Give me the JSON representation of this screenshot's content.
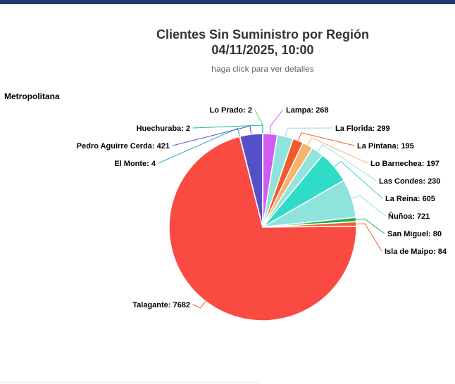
{
  "chart_data": {
    "type": "pie",
    "title_line1": "Clientes Sin Suministro por Región",
    "title_line2": "04/11/2025, 10:00",
    "subtitle": "haga click para ver detalles",
    "series_name": "Metropolitana",
    "slices": [
      {
        "name": "Lo Prado",
        "value": 2,
        "color": "#5bd46b"
      },
      {
        "name": "Lampa",
        "value": 268,
        "color": "#d05cf0"
      },
      {
        "name": "La Florida",
        "value": 299,
        "color": "#8fe3dd"
      },
      {
        "name": "La Pintana",
        "value": 195,
        "color": "#f25a2c"
      },
      {
        "name": "Lo Barnechea",
        "value": 197,
        "color": "#f8b26a"
      },
      {
        "name": "Las Condes",
        "value": 230,
        "color": "#93e4de"
      },
      {
        "name": "La Reina",
        "value": 605,
        "color": "#2fdcc8"
      },
      {
        "name": "Ñuñoa",
        "value": 721,
        "color": "#8fe3dd"
      },
      {
        "name": "San Miguel",
        "value": 80,
        "color": "#21b04b"
      },
      {
        "name": "Isla de Maipo",
        "value": 84,
        "color": "#f2612f"
      },
      {
        "name": "Talagante",
        "value": 7682,
        "color": "#fa4b43"
      },
      {
        "name": "El Monte",
        "value": 4,
        "color": "#2aa7d6"
      },
      {
        "name": "Pedro Aguirre Cerda",
        "value": 421,
        "color": "#5550c7"
      },
      {
        "name": "Huechuraba",
        "value": 2,
        "color": "#1fb3a5"
      }
    ]
  }
}
